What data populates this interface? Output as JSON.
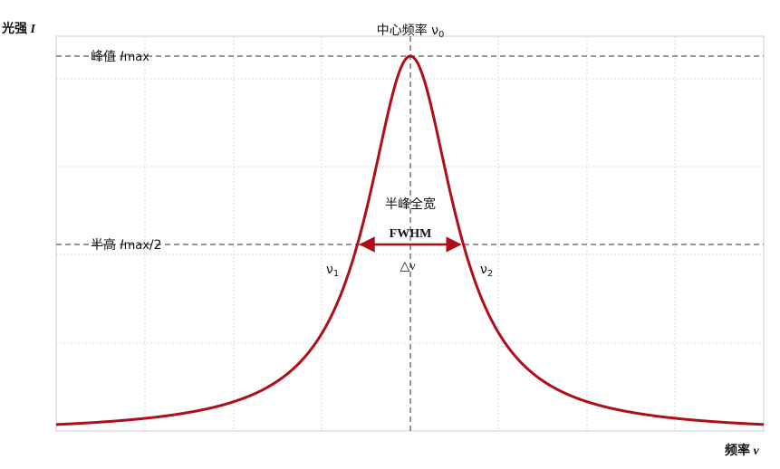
{
  "axes": {
    "y_label": {
      "text": "光强 ",
      "symbol": "I"
    },
    "x_label": {
      "text": "频率 ",
      "symbol": "ν"
    }
  },
  "labels": {
    "center": {
      "text": "中心频率 ",
      "symbol": "ν",
      "sub": "0"
    },
    "peak": {
      "text": "峰值 ",
      "symbol": "I",
      "sub": "max"
    },
    "half": {
      "text": "半高 ",
      "symbol": "I",
      "sub": "max",
      "tail": "/2"
    },
    "fwhm_cn": "半峰全宽",
    "fwhm": "FWHM",
    "delta": "△ν",
    "nu1": {
      "symbol": "ν",
      "sub": "1"
    },
    "nu2": {
      "symbol": "ν",
      "sub": "2"
    }
  }
}
